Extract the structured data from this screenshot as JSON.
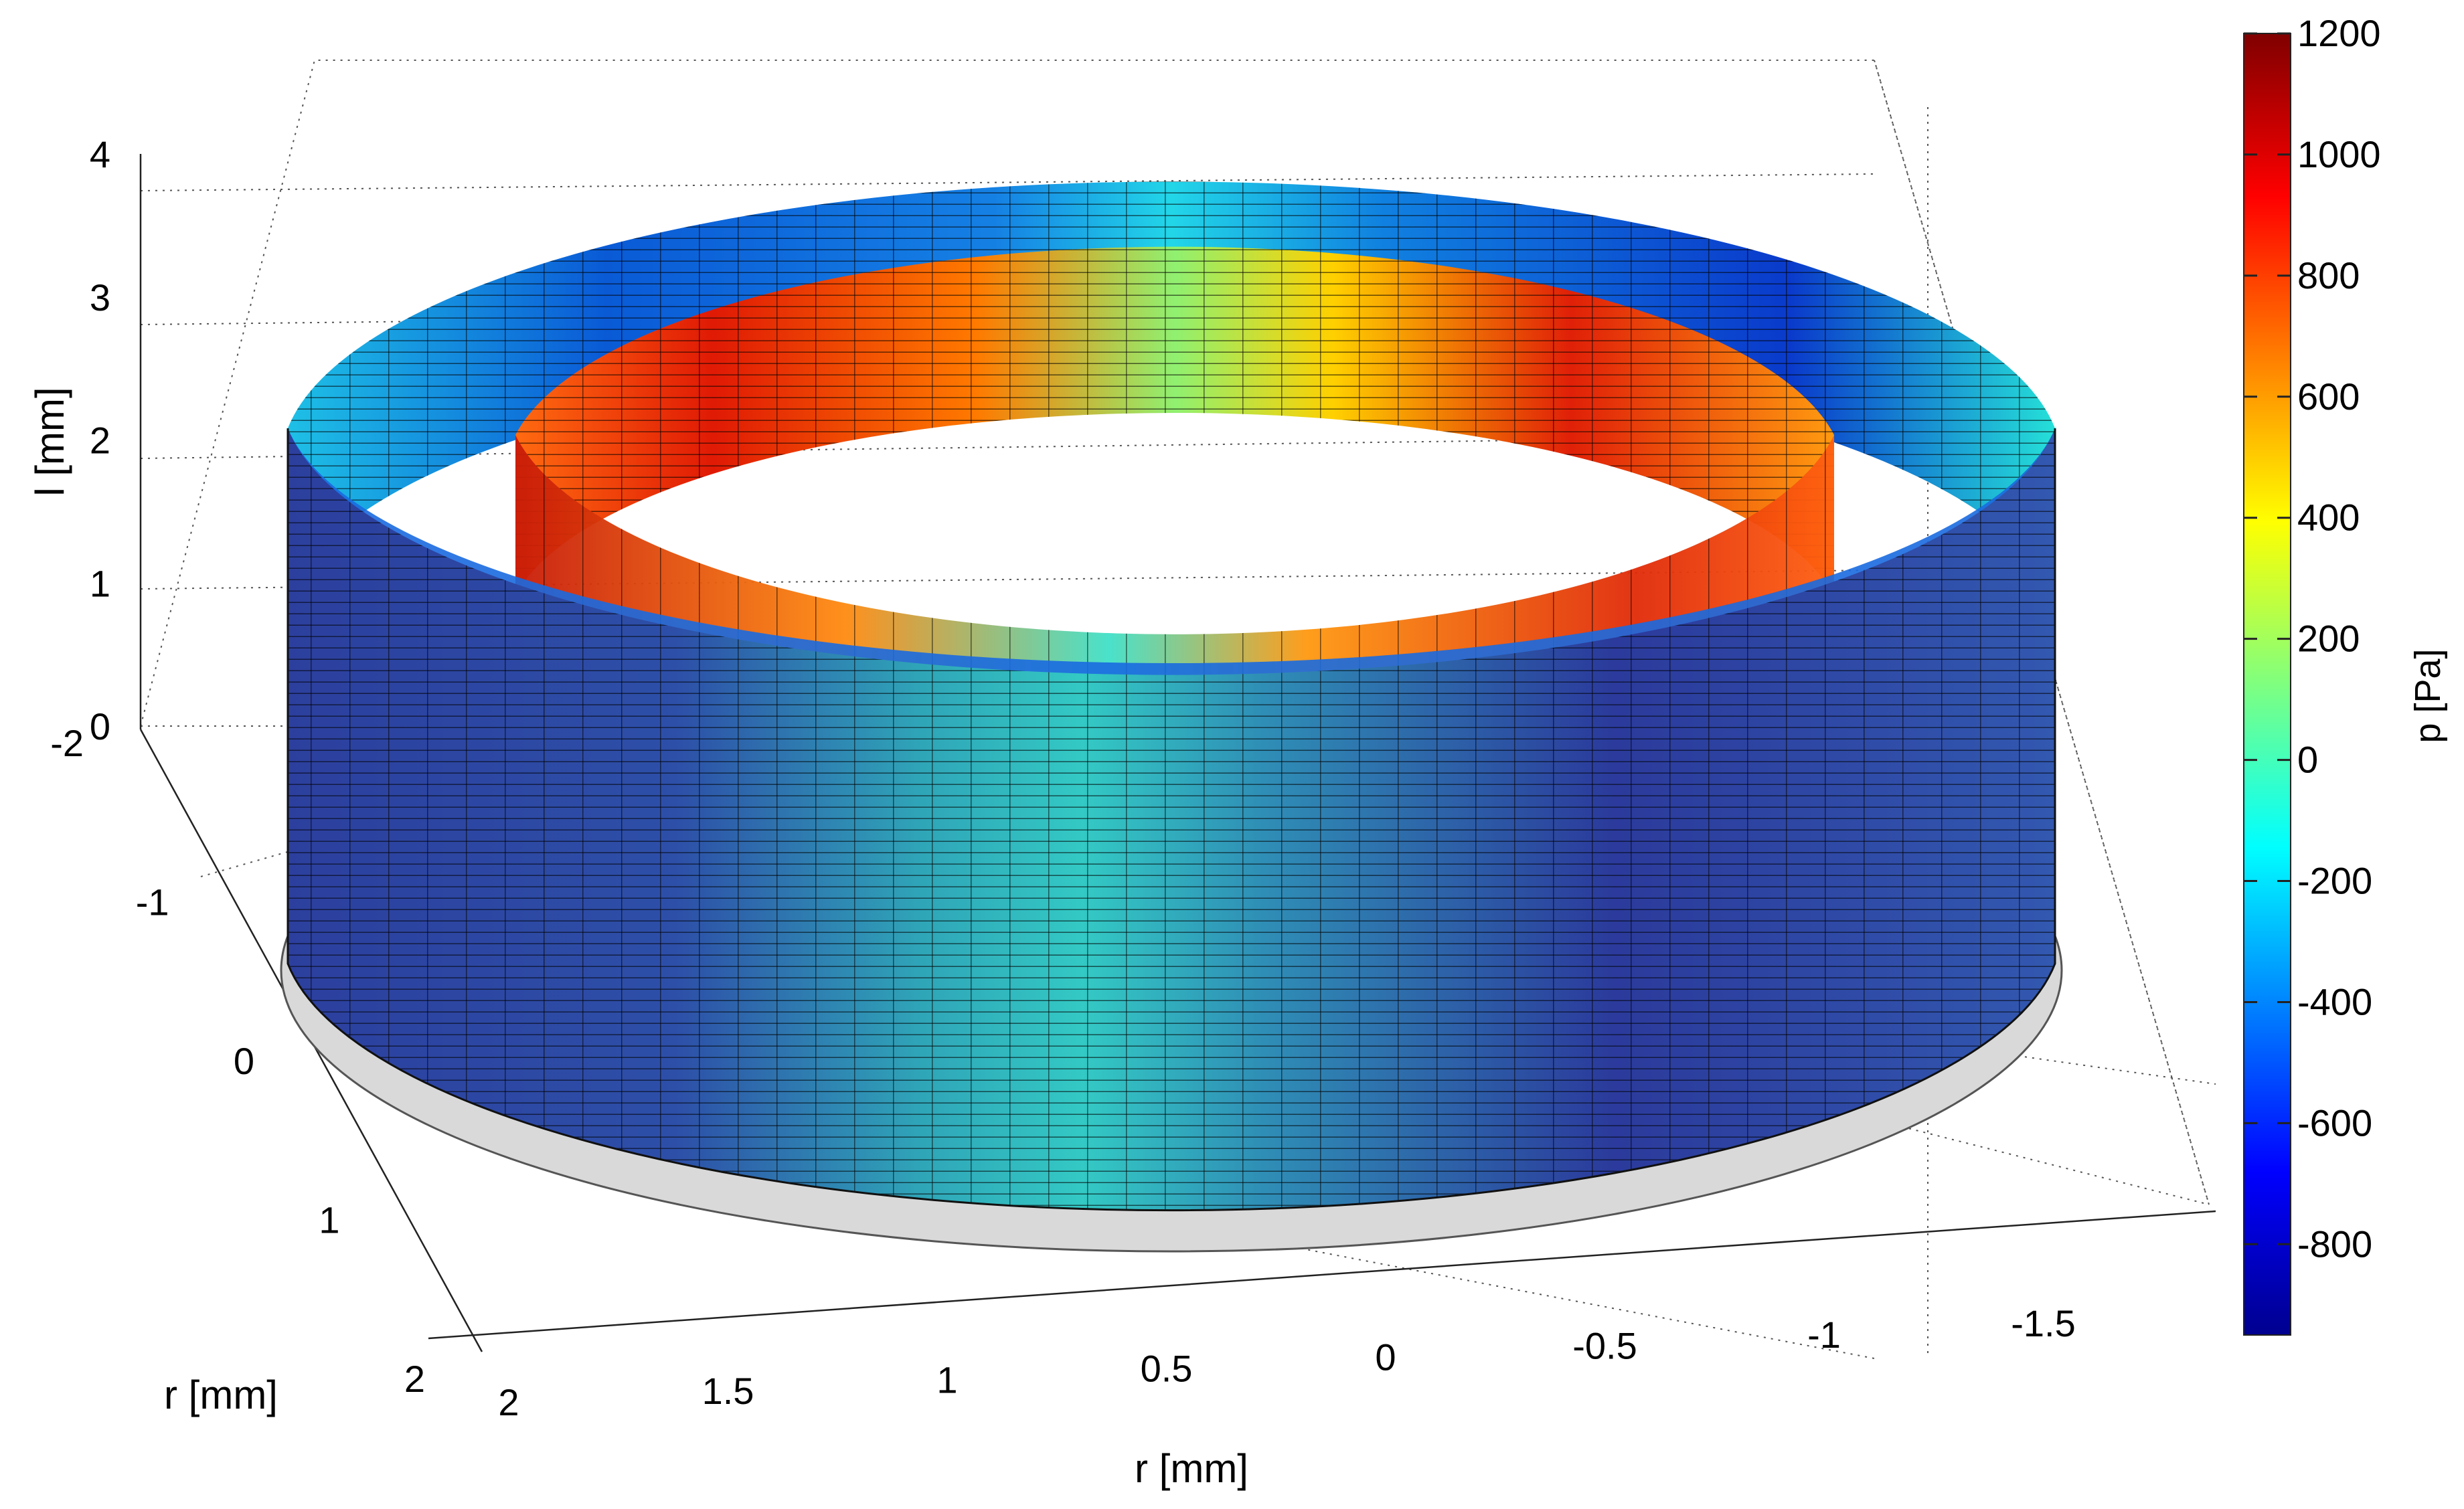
{
  "chart_data": {
    "type": "surface",
    "title": "",
    "axes": {
      "x": {
        "label": "r [mm]",
        "ticks": [
          "2",
          "1.5",
          "1",
          "0.5",
          "0",
          "-0.5",
          "-1",
          "-1.5"
        ],
        "range": [
          -2,
          2
        ]
      },
      "y": {
        "label": "r [mm]",
        "ticks": [
          "-2",
          "-1",
          "0",
          "1",
          "2"
        ],
        "range": [
          -2,
          2
        ]
      },
      "z": {
        "label": "l [mm]",
        "ticks": [
          "0",
          "1",
          "2",
          "3",
          "4"
        ],
        "range": [
          0,
          4
        ]
      }
    },
    "colorbar": {
      "label": "p [Pa]",
      "ticks": [
        "1200",
        "1000",
        "800",
        "600",
        "400",
        "200",
        "0",
        "-200",
        "-400",
        "-600",
        "-800"
      ],
      "range": [
        -950,
        1200
      ],
      "colormap": "jet"
    },
    "surfaces": [
      {
        "name": "outer cylinder",
        "radius_mm": 2.0,
        "height_mm": [
          0,
          4
        ]
      },
      {
        "name": "inner cylinder",
        "radius_mm": 1.2,
        "height_mm": [
          0,
          4
        ]
      }
    ],
    "grid": true
  }
}
